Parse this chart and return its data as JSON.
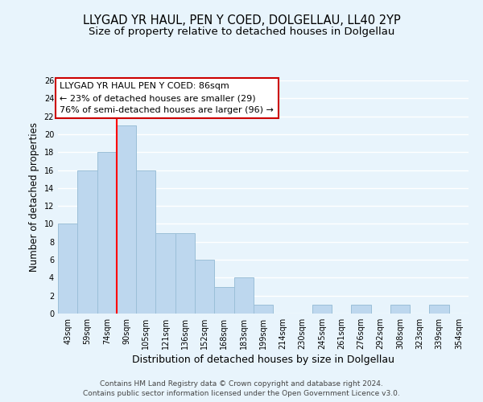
{
  "title": "LLYGAD YR HAUL, PEN Y COED, DOLGELLAU, LL40 2YP",
  "subtitle": "Size of property relative to detached houses in Dolgellau",
  "xlabel": "Distribution of detached houses by size in Dolgellau",
  "ylabel": "Number of detached properties",
  "bin_labels": [
    "43sqm",
    "59sqm",
    "74sqm",
    "90sqm",
    "105sqm",
    "121sqm",
    "136sqm",
    "152sqm",
    "168sqm",
    "183sqm",
    "199sqm",
    "214sqm",
    "230sqm",
    "245sqm",
    "261sqm",
    "276sqm",
    "292sqm",
    "308sqm",
    "323sqm",
    "339sqm",
    "354sqm"
  ],
  "bar_heights": [
    10,
    16,
    18,
    21,
    16,
    9,
    9,
    6,
    3,
    4,
    1,
    0,
    0,
    1,
    0,
    1,
    0,
    1,
    0,
    1,
    0
  ],
  "bar_color": "#bdd7ee",
  "bar_edge_color": "#9bbfd8",
  "annotation_line1": "LLYGAD YR HAUL PEN Y COED: 86sqm",
  "annotation_line2": "← 23% of detached houses are smaller (29)",
  "annotation_line3": "76% of semi-detached houses are larger (96) →",
  "red_line_x": 2.5,
  "ylim": [
    0,
    26
  ],
  "yticks": [
    0,
    2,
    4,
    6,
    8,
    10,
    12,
    14,
    16,
    18,
    20,
    22,
    24,
    26
  ],
  "footer_line1": "Contains HM Land Registry data © Crown copyright and database right 2024.",
  "footer_line2": "Contains public sector information licensed under the Open Government Licence v3.0.",
  "bg_color": "#e8f4fc",
  "grid_color": "#ffffff",
  "title_fontsize": 10.5,
  "subtitle_fontsize": 9.5,
  "xlabel_fontsize": 9,
  "ylabel_fontsize": 8.5,
  "tick_fontsize": 7,
  "ann_fontsize": 8,
  "footer_fontsize": 6.5
}
